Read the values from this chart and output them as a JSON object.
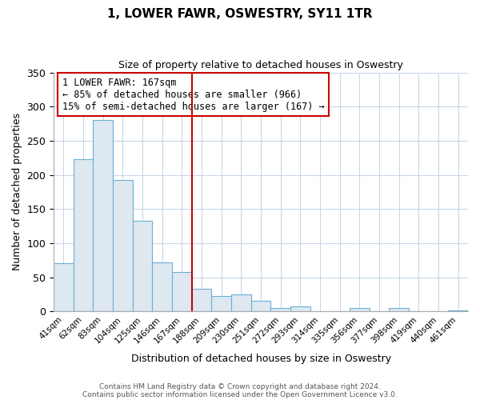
{
  "title": "1, LOWER FAWR, OSWESTRY, SY11 1TR",
  "subtitle": "Size of property relative to detached houses in Oswestry",
  "xlabel": "Distribution of detached houses by size in Oswestry",
  "ylabel": "Number of detached properties",
  "bar_labels": [
    "41sqm",
    "62sqm",
    "83sqm",
    "104sqm",
    "125sqm",
    "146sqm",
    "167sqm",
    "188sqm",
    "209sqm",
    "230sqm",
    "251sqm",
    "272sqm",
    "293sqm",
    "314sqm",
    "335sqm",
    "356sqm",
    "377sqm",
    "398sqm",
    "419sqm",
    "440sqm",
    "461sqm"
  ],
  "bar_values": [
    70,
    223,
    280,
    193,
    133,
    72,
    58,
    33,
    23,
    25,
    15,
    5,
    7,
    0,
    0,
    5,
    0,
    5,
    0,
    0,
    1
  ],
  "bar_face_color": "#dde8f0",
  "bar_edge_color": "#6baed6",
  "vline_color": "#cc0000",
  "vline_index": 6,
  "annotation_title": "1 LOWER FAWR: 167sqm",
  "annotation_line1": "← 85% of detached houses are smaller (966)",
  "annotation_line2": "15% of semi-detached houses are larger (167) →",
  "annotation_box_edge": "#cc0000",
  "ylim": [
    0,
    350
  ],
  "yticks": [
    0,
    50,
    100,
    150,
    200,
    250,
    300,
    350
  ],
  "title_fontsize": 11,
  "subtitle_fontsize": 9,
  "ylabel_fontsize": 9,
  "xlabel_fontsize": 9,
  "footnote1": "Contains HM Land Registry data © Crown copyright and database right 2024.",
  "footnote2": "Contains public sector information licensed under the Open Government Licence v3.0."
}
